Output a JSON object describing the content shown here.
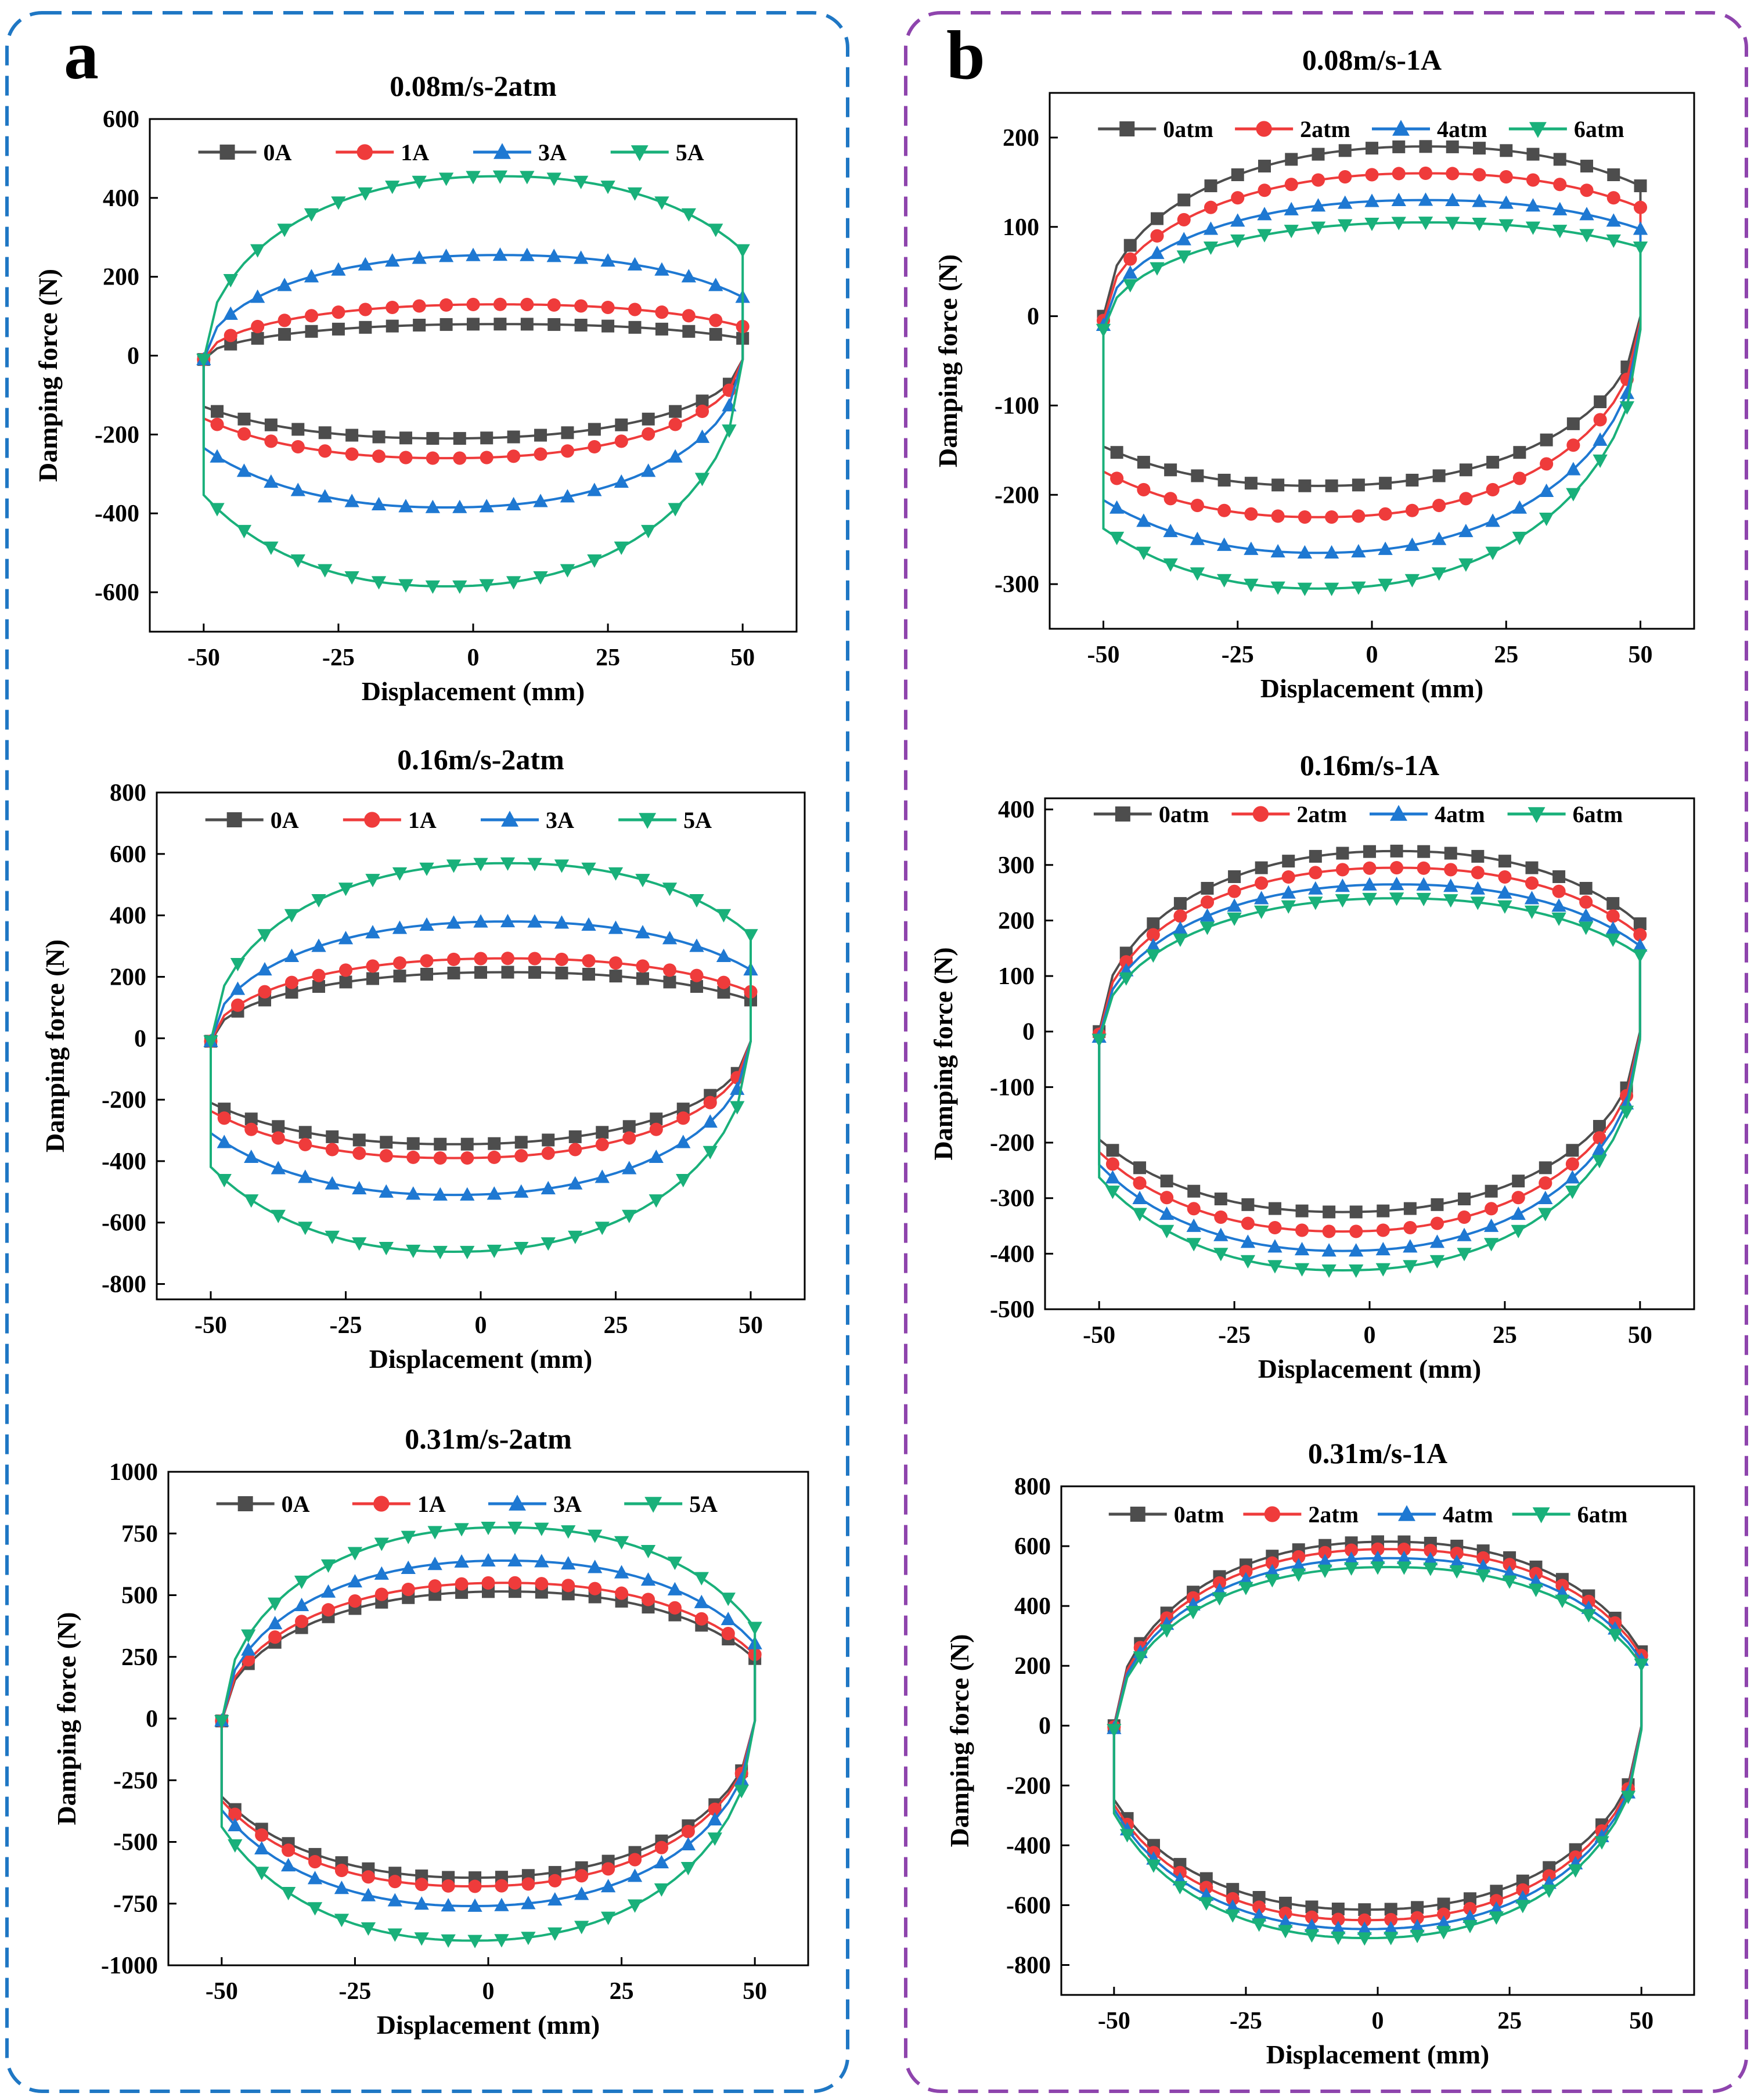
{
  "panels": [
    {
      "letter": "a",
      "border_color": "#1f77c4"
    },
    {
      "letter": "b",
      "border_color": "#8e44ad"
    }
  ],
  "series_styles": {
    "colors": [
      "#4d4d4d",
      "#ef3b3b",
      "#1e78d2",
      "#19b07a"
    ],
    "markers": [
      "square",
      "circle",
      "triangle-up",
      "triangle-down"
    ]
  },
  "chart_data": [
    {
      "type": "line",
      "panel": "a",
      "title": "0.08m/s-2atm",
      "xlabel": "Displacement (mm)",
      "ylabel": "Damping force (N)",
      "xlim": [
        -60,
        60
      ],
      "ylim": [
        -700,
        600
      ],
      "xticks": [
        -50,
        -25,
        0,
        25,
        50
      ],
      "yticks": [
        -600,
        -400,
        -200,
        0,
        200,
        400,
        600
      ],
      "series": [
        {
          "name": "0A",
          "top": 80,
          "bottom": -210,
          "center_shift": 5
        },
        {
          "name": "1A",
          "top": 130,
          "bottom": -260,
          "center_shift": 5
        },
        {
          "name": "3A",
          "top": 255,
          "bottom": -385,
          "center_shift": 5
        },
        {
          "name": "5A",
          "top": 455,
          "bottom": -585,
          "center_shift": 5
        }
      ]
    },
    {
      "type": "line",
      "panel": "a",
      "title": "0.16m/s-2atm",
      "xlabel": "Displacement (mm)",
      "ylabel": "Damping force (N)",
      "xlim": [
        -60,
        60
      ],
      "ylim": [
        -850,
        800
      ],
      "xticks": [
        -50,
        -25,
        0,
        25,
        50
      ],
      "yticks": [
        -800,
        -600,
        -400,
        -200,
        0,
        200,
        400,
        600,
        800
      ],
      "series": [
        {
          "name": "0A",
          "top": 215,
          "bottom": -345,
          "center_shift": 5
        },
        {
          "name": "1A",
          "top": 260,
          "bottom": -390,
          "center_shift": 5
        },
        {
          "name": "3A",
          "top": 380,
          "bottom": -510,
          "center_shift": 5
        },
        {
          "name": "5A",
          "top": 570,
          "bottom": -695,
          "center_shift": 5
        }
      ]
    },
    {
      "type": "line",
      "panel": "a",
      "title": "0.31m/s-2atm",
      "xlabel": "Displacement (mm)",
      "ylabel": "Damping force (N)",
      "xlim": [
        -60,
        60
      ],
      "ylim": [
        -1000,
        1000
      ],
      "xticks": [
        -50,
        -25,
        0,
        25,
        50
      ],
      "yticks": [
        -1000,
        -750,
        -500,
        -250,
        0,
        250,
        500,
        750,
        1000
      ],
      "series": [
        {
          "name": "0A",
          "top": 515,
          "bottom": -645,
          "center_shift": 3
        },
        {
          "name": "1A",
          "top": 550,
          "bottom": -680,
          "center_shift": 3
        },
        {
          "name": "3A",
          "top": 640,
          "bottom": -760,
          "center_shift": 3
        },
        {
          "name": "5A",
          "top": 775,
          "bottom": -900,
          "center_shift": 3
        }
      ]
    },
    {
      "type": "line",
      "panel": "b",
      "title": "0.08m/s-1A",
      "xlabel": "Displacement (mm)",
      "ylabel": "Damping force (N)",
      "xlim": [
        -60,
        60
      ],
      "ylim": [
        -350,
        250
      ],
      "xticks": [
        -50,
        -25,
        0,
        25,
        50
      ],
      "yticks": [
        -300,
        -200,
        -100,
        0,
        100,
        200
      ],
      "series": [
        {
          "name": "0atm",
          "top": 190,
          "bottom": -190,
          "center_shift": 10
        },
        {
          "name": "2atm",
          "top": 160,
          "bottom": -225,
          "center_shift": 10
        },
        {
          "name": "4atm",
          "top": 130,
          "bottom": -265,
          "center_shift": 10
        },
        {
          "name": "6atm",
          "top": 105,
          "bottom": -305,
          "center_shift": 10
        }
      ]
    },
    {
      "type": "line",
      "panel": "b",
      "title": "0.16m/s-1A",
      "xlabel": "Displacement (mm)",
      "ylabel": "Damping force (N)",
      "xlim": [
        -60,
        60
      ],
      "ylim": [
        -500,
        420
      ],
      "xticks": [
        -50,
        -25,
        0,
        25,
        50
      ],
      "yticks": [
        -500,
        -400,
        -300,
        -200,
        -100,
        0,
        100,
        200,
        300,
        400
      ],
      "series": [
        {
          "name": "0atm",
          "top": 325,
          "bottom": -325,
          "center_shift": 5
        },
        {
          "name": "2atm",
          "top": 295,
          "bottom": -360,
          "center_shift": 5
        },
        {
          "name": "4atm",
          "top": 265,
          "bottom": -395,
          "center_shift": 5
        },
        {
          "name": "6atm",
          "top": 240,
          "bottom": -430,
          "center_shift": 5
        }
      ]
    },
    {
      "type": "line",
      "panel": "b",
      "title": "0.31m/s-1A",
      "xlabel": "Displacement (mm)",
      "ylabel": "Damping force (N)",
      "xlim": [
        -60,
        60
      ],
      "ylim": [
        -900,
        800
      ],
      "xticks": [
        -50,
        -25,
        0,
        25,
        50
      ],
      "yticks": [
        -800,
        -600,
        -400,
        -200,
        0,
        200,
        400,
        600,
        800
      ],
      "series": [
        {
          "name": "0atm",
          "top": 615,
          "bottom": -615,
          "center_shift": 2
        },
        {
          "name": "2atm",
          "top": 590,
          "bottom": -650,
          "center_shift": 2
        },
        {
          "name": "4atm",
          "top": 560,
          "bottom": -680,
          "center_shift": 2
        },
        {
          "name": "6atm",
          "top": 530,
          "bottom": -710,
          "center_shift": 2
        }
      ]
    }
  ]
}
